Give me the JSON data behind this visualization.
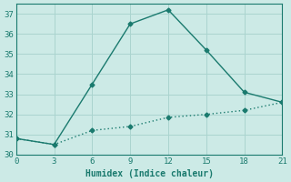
{
  "line1_x": [
    0,
    3,
    6,
    9,
    12,
    15,
    18,
    21
  ],
  "line1_y": [
    30.8,
    30.5,
    33.5,
    36.5,
    37.2,
    35.2,
    33.1,
    32.6
  ],
  "line2_x": [
    0,
    3,
    6,
    9,
    12,
    15,
    18,
    21
  ],
  "line2_y": [
    30.8,
    30.5,
    31.2,
    31.4,
    31.85,
    32.0,
    32.2,
    32.6
  ],
  "line_color": "#1a7a6e",
  "bg_color": "#cceae6",
  "grid_color": "#aad4cf",
  "xlabel": "Humidex (Indice chaleur)",
  "xlim": [
    0,
    21
  ],
  "ylim": [
    30,
    37.5
  ],
  "xticks": [
    0,
    3,
    6,
    9,
    12,
    15,
    18,
    21
  ],
  "yticks": [
    30,
    31,
    32,
    33,
    34,
    35,
    36,
    37
  ],
  "marker": "D",
  "markersize": 2.5,
  "linewidth": 1.0,
  "tick_fontsize": 6.5,
  "xlabel_fontsize": 7.0
}
